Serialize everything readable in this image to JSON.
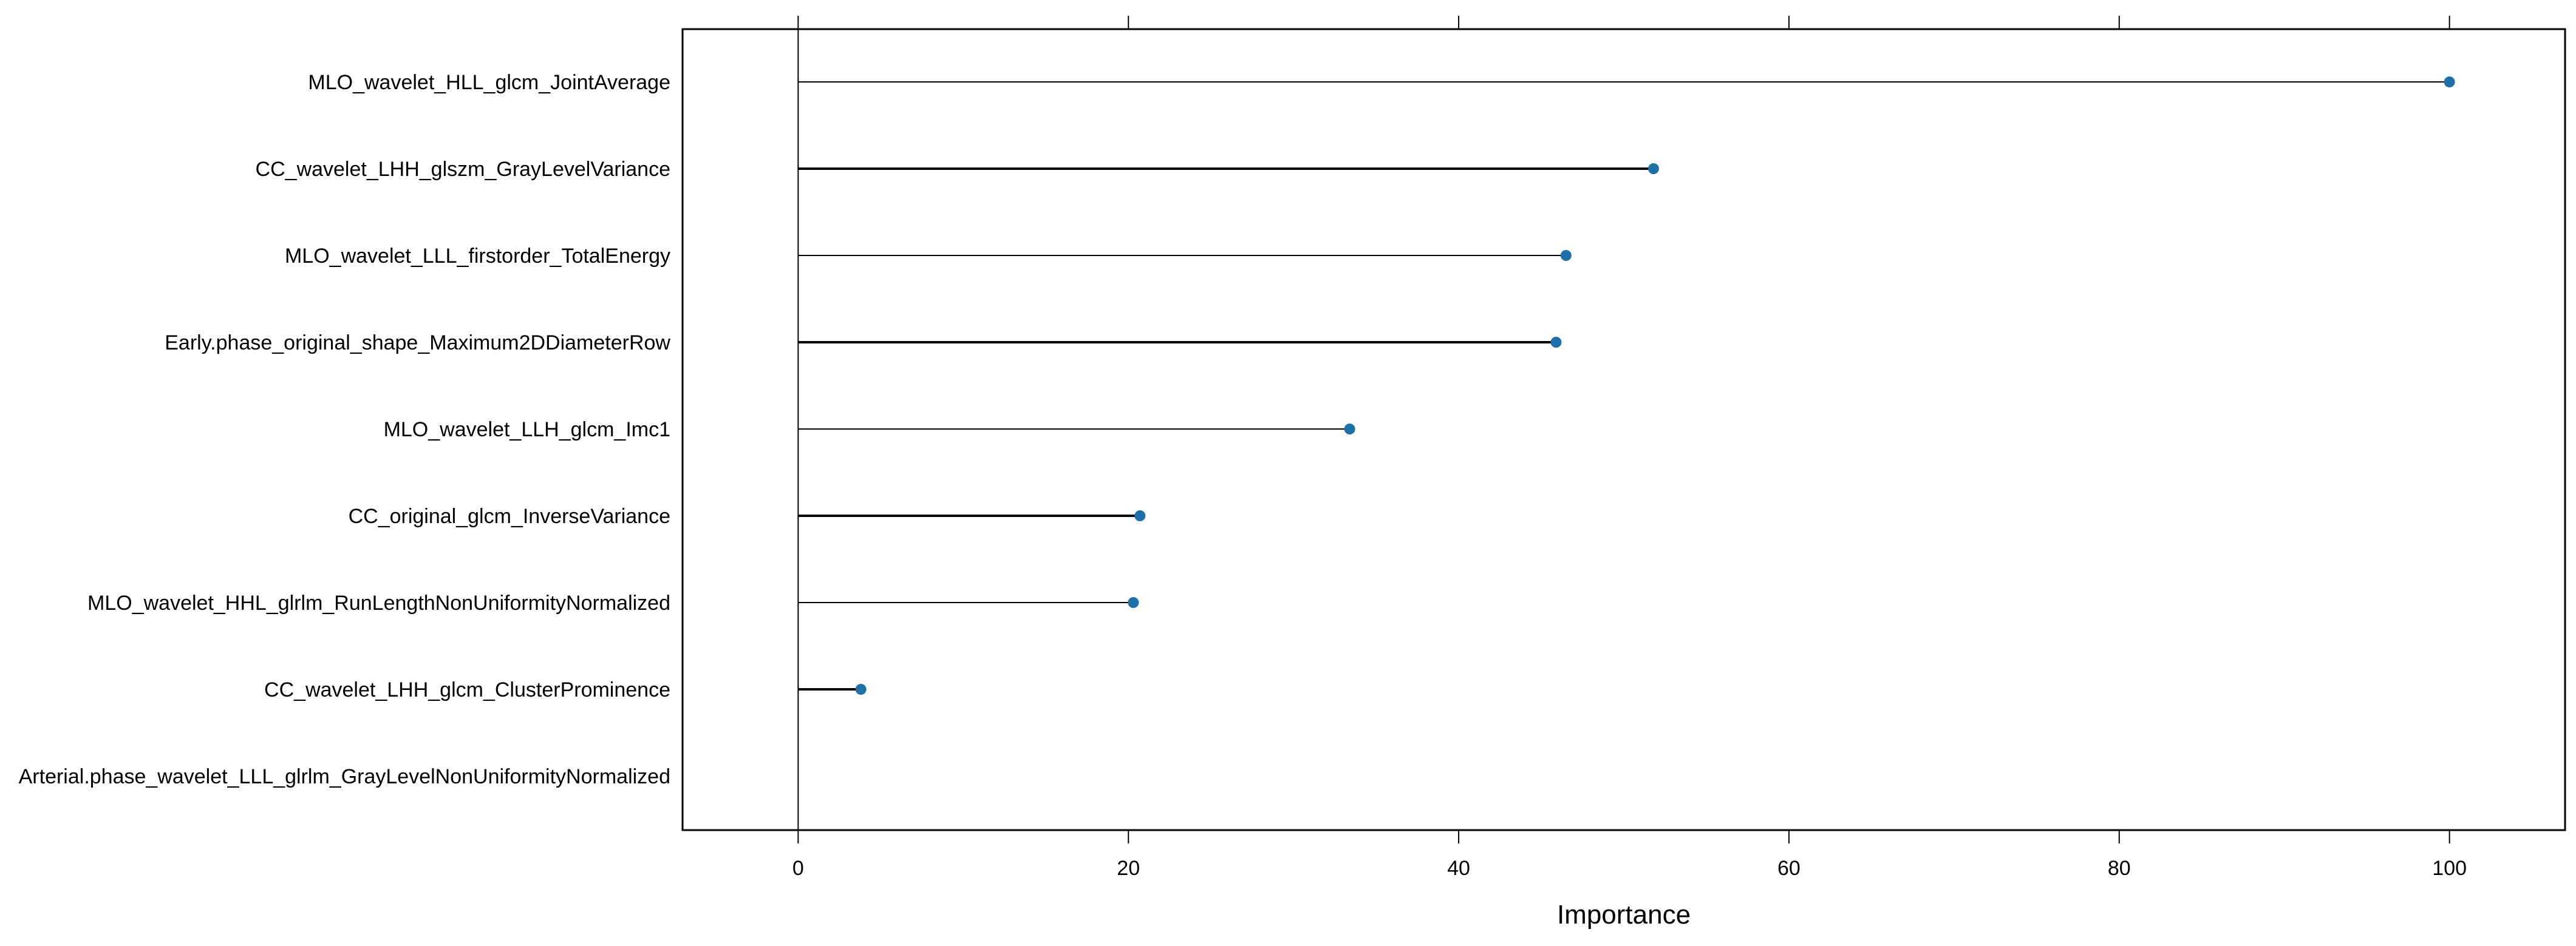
{
  "chart_data": {
    "type": "lollipop",
    "xlabel": "Importance",
    "xlim": [
      -7,
      107
    ],
    "xticks": [
      0,
      20,
      40,
      60,
      80,
      100
    ],
    "tick_labels": [
      "0",
      "20",
      "40",
      "60",
      "80",
      "100"
    ],
    "categories": [
      "MLO_wavelet_HLL_glcm_JointAverage",
      "CC_wavelet_LHH_glszm_GrayLevelVariance",
      "MLO_wavelet_LLL_firstorder_TotalEnergy",
      "Early.phase_original_shape_Maximum2DDiameterRow",
      "MLO_wavelet_LLH_glcm_Imc1",
      "CC_original_glcm_InverseVariance",
      "MLO_wavelet_HHL_glrlm_RunLengthNonUniformityNormalized",
      "CC_wavelet_LHH_glcm_ClusterProminence",
      "Arterial.phase_wavelet_LLL_glrlm_GrayLevelNonUniformityNormalized"
    ],
    "values": [
      100,
      51.8,
      46.5,
      45.9,
      33.4,
      20.7,
      20.3,
      3.8,
      0
    ],
    "point_color": "#1f6fa8",
    "line_color": "#000000",
    "grid": false
  }
}
